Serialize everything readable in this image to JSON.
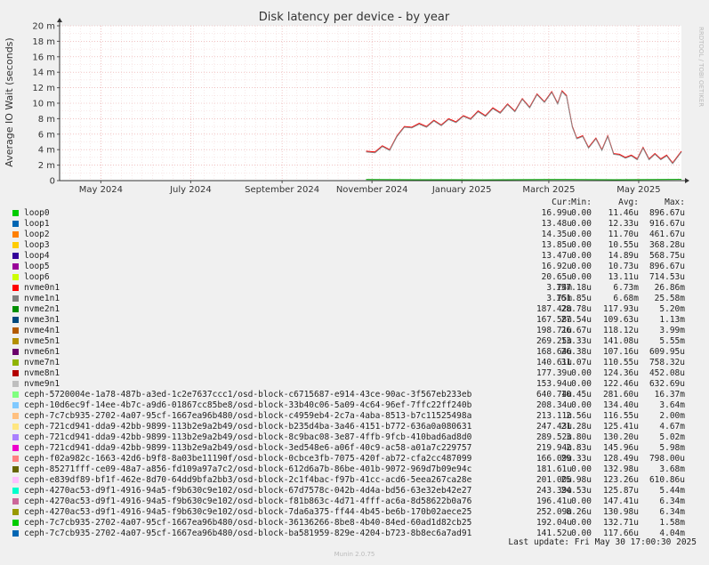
{
  "chart_data": {
    "type": "line",
    "title": "Disk latency per device - by year",
    "ylabel": "Average IO Wait (seconds)",
    "side_label": "RRDTOOL / TOBI OETIKER",
    "ylim": [
      0,
      0.02
    ],
    "y_ticks": [
      {
        "v": 0,
        "label": "0"
      },
      {
        "v": 0.002,
        "label": "2 m"
      },
      {
        "v": 0.004,
        "label": "4 m"
      },
      {
        "v": 0.006,
        "label": "6 m"
      },
      {
        "v": 0.008,
        "label": "8 m"
      },
      {
        "v": 0.01,
        "label": "10 m"
      },
      {
        "v": 0.012,
        "label": "12 m"
      },
      {
        "v": 0.014,
        "label": "14 m"
      },
      {
        "v": 0.016,
        "label": "16 m"
      },
      {
        "v": 0.018,
        "label": "18 m"
      },
      {
        "v": 0.02,
        "label": "20 m"
      }
    ],
    "x_range": [
      "2024-04-03",
      "2025-05-30"
    ],
    "x_ticks": [
      {
        "date": "2024-05-01",
        "label": "May 2024"
      },
      {
        "date": "2024-07-01",
        "label": "July 2024"
      },
      {
        "date": "2024-09-01",
        "label": "September 2024"
      },
      {
        "date": "2024-11-01",
        "label": "November 2024"
      },
      {
        "date": "2025-01-01",
        "label": "January 2025"
      },
      {
        "date": "2025-03-01",
        "label": "March 2025"
      },
      {
        "date": "2025-05-01",
        "label": "May 2025"
      }
    ],
    "grid": true,
    "series": [
      {
        "name": "nvme0n1",
        "color": "#ff0000",
        "points": [
          [
            "2024-10-28",
            0.0038
          ],
          [
            "2024-11-03",
            0.0037
          ],
          [
            "2024-11-08",
            0.0045
          ],
          [
            "2024-11-13",
            0.004
          ],
          [
            "2024-11-18",
            0.0058
          ],
          [
            "2024-11-23",
            0.007
          ],
          [
            "2024-11-28",
            0.0069
          ],
          [
            "2024-12-03",
            0.0074
          ],
          [
            "2024-12-08",
            0.007
          ],
          [
            "2024-12-13",
            0.0078
          ],
          [
            "2024-12-18",
            0.0072
          ],
          [
            "2024-12-23",
            0.008
          ],
          [
            "2024-12-28",
            0.0076
          ],
          [
            "2025-01-02",
            0.0084
          ],
          [
            "2025-01-07",
            0.008
          ],
          [
            "2025-01-12",
            0.009
          ],
          [
            "2025-01-17",
            0.0084
          ],
          [
            "2025-01-22",
            0.0094
          ],
          [
            "2025-01-27",
            0.0088
          ],
          [
            "2025-02-01",
            0.0099
          ],
          [
            "2025-02-06",
            0.009
          ],
          [
            "2025-02-11",
            0.0106
          ],
          [
            "2025-02-16",
            0.0095
          ],
          [
            "2025-02-21",
            0.0112
          ],
          [
            "2025-02-26",
            0.0102
          ],
          [
            "2025-03-03",
            0.0115
          ],
          [
            "2025-03-07",
            0.01
          ],
          [
            "2025-03-10",
            0.0116
          ],
          [
            "2025-03-13",
            0.011
          ],
          [
            "2025-03-17",
            0.007
          ],
          [
            "2025-03-20",
            0.0055
          ],
          [
            "2025-03-24",
            0.0058
          ],
          [
            "2025-03-28",
            0.0043
          ],
          [
            "2025-04-02",
            0.0055
          ],
          [
            "2025-04-06",
            0.004
          ],
          [
            "2025-04-10",
            0.0058
          ],
          [
            "2025-04-14",
            0.0035
          ],
          [
            "2025-04-18",
            0.0034
          ],
          [
            "2025-04-22",
            0.003
          ],
          [
            "2025-04-26",
            0.0033
          ],
          [
            "2025-04-30",
            0.0028
          ],
          [
            "2025-05-04",
            0.0043
          ],
          [
            "2025-05-08",
            0.0028
          ],
          [
            "2025-05-12",
            0.0035
          ],
          [
            "2025-05-16",
            0.0028
          ],
          [
            "2025-05-20",
            0.0033
          ],
          [
            "2025-05-24",
            0.0023
          ],
          [
            "2025-05-30",
            0.0038
          ]
        ]
      },
      {
        "name": "nvme1n1",
        "color": "#888888",
        "points": [
          [
            "2024-10-28",
            0.0037
          ],
          [
            "2024-11-03",
            0.0036
          ],
          [
            "2024-11-08",
            0.0044
          ],
          [
            "2024-11-13",
            0.0039
          ],
          [
            "2024-11-18",
            0.0057
          ],
          [
            "2024-11-23",
            0.0069
          ],
          [
            "2024-11-28",
            0.0068
          ],
          [
            "2024-12-03",
            0.0073
          ],
          [
            "2024-12-08",
            0.0069
          ],
          [
            "2024-12-13",
            0.0077
          ],
          [
            "2024-12-18",
            0.0071
          ],
          [
            "2024-12-23",
            0.0079
          ],
          [
            "2024-12-28",
            0.0075
          ],
          [
            "2025-01-02",
            0.0083
          ],
          [
            "2025-01-07",
            0.0079
          ],
          [
            "2025-01-12",
            0.0089
          ],
          [
            "2025-01-17",
            0.0083
          ],
          [
            "2025-01-22",
            0.0093
          ],
          [
            "2025-01-27",
            0.0087
          ],
          [
            "2025-02-01",
            0.0098
          ],
          [
            "2025-02-06",
            0.0089
          ],
          [
            "2025-02-11",
            0.0105
          ],
          [
            "2025-02-16",
            0.0094
          ],
          [
            "2025-02-21",
            0.0111
          ],
          [
            "2025-02-26",
            0.0101
          ],
          [
            "2025-03-03",
            0.0114
          ],
          [
            "2025-03-07",
            0.0099
          ],
          [
            "2025-03-10",
            0.0115
          ],
          [
            "2025-03-13",
            0.0109
          ],
          [
            "2025-03-17",
            0.0069
          ],
          [
            "2025-03-20",
            0.0054
          ],
          [
            "2025-03-24",
            0.0057
          ],
          [
            "2025-03-28",
            0.0042
          ],
          [
            "2025-04-02",
            0.0054
          ],
          [
            "2025-04-06",
            0.0039
          ],
          [
            "2025-04-10",
            0.0057
          ],
          [
            "2025-04-14",
            0.0034
          ],
          [
            "2025-04-18",
            0.0033
          ],
          [
            "2025-04-22",
            0.0029
          ],
          [
            "2025-04-26",
            0.0032
          ],
          [
            "2025-04-30",
            0.0027
          ],
          [
            "2025-05-04",
            0.0042
          ],
          [
            "2025-05-08",
            0.0027
          ],
          [
            "2025-05-12",
            0.0034
          ],
          [
            "2025-05-16",
            0.0027
          ],
          [
            "2025-05-20",
            0.0032
          ],
          [
            "2025-05-24",
            0.0022
          ],
          [
            "2025-05-30",
            0.0037
          ]
        ]
      },
      {
        "name": "nvme3n1",
        "color": "#00aa00",
        "points": [
          [
            "2024-10-28",
            0.00015
          ],
          [
            "2024-12-01",
            0.00012
          ],
          [
            "2025-01-15",
            0.0001
          ],
          [
            "2025-03-01",
            0.00015
          ],
          [
            "2025-04-15",
            0.00012
          ],
          [
            "2025-05-30",
            0.00016
          ]
        ]
      }
    ],
    "legend": {
      "headers": [
        "Cur:",
        "Min:",
        "Avg:",
        "Max:"
      ],
      "rows": [
        {
          "name": "loop0",
          "color": "#00cc00",
          "cur": "16.99u",
          "min": "0.00",
          "avg": "11.46u",
          "max": "896.67u"
        },
        {
          "name": "loop1",
          "color": "#0066b3",
          "cur": "13.48u",
          "min": "0.00",
          "avg": "12.33u",
          "max": "916.67u"
        },
        {
          "name": "loop2",
          "color": "#ff8000",
          "cur": "14.35u",
          "min": "0.00",
          "avg": "11.70u",
          "max": "461.67u"
        },
        {
          "name": "loop3",
          "color": "#ffcc00",
          "cur": "13.85u",
          "min": "0.00",
          "avg": "10.55u",
          "max": "368.28u"
        },
        {
          "name": "loop4",
          "color": "#330099",
          "cur": "13.47u",
          "min": "0.00",
          "avg": "14.89u",
          "max": "568.75u"
        },
        {
          "name": "loop5",
          "color": "#990099",
          "cur": "16.92u",
          "min": "0.00",
          "avg": "10.73u",
          "max": "896.67u"
        },
        {
          "name": "loop6",
          "color": "#ccff00",
          "cur": "20.65u",
          "min": "0.00",
          "avg": "13.11u",
          "max": "714.53u"
        },
        {
          "name": "nvme0n1",
          "color": "#ff0000",
          "cur": "3.74m",
          "min": "157.18u",
          "avg": "6.73m",
          "max": "26.86m"
        },
        {
          "name": "nvme1n1",
          "color": "#808080",
          "cur": "3.75m",
          "min": "161.85u",
          "avg": "6.68m",
          "max": "25.58m"
        },
        {
          "name": "nvme2n1",
          "color": "#008f00",
          "cur": "187.42u",
          "min": "28.78u",
          "avg": "117.93u",
          "max": "5.20m"
        },
        {
          "name": "nvme3n1",
          "color": "#00487d",
          "cur": "167.58u",
          "min": "27.54u",
          "avg": "109.63u",
          "max": "1.13m"
        },
        {
          "name": "nvme4n1",
          "color": "#b35a00",
          "cur": "198.71u",
          "min": "26.67u",
          "avg": "118.12u",
          "max": "3.99m"
        },
        {
          "name": "nvme5n1",
          "color": "#b38f00",
          "cur": "269.25u",
          "min": "13.33u",
          "avg": "141.08u",
          "max": "5.55m"
        },
        {
          "name": "nvme6n1",
          "color": "#6b006b",
          "cur": "168.64u",
          "min": "26.38u",
          "avg": "107.16u",
          "max": "609.95u"
        },
        {
          "name": "nvme7n1",
          "color": "#8fb300",
          "cur": "140.61u",
          "min": "31.07u",
          "avg": "110.55u",
          "max": "758.32u"
        },
        {
          "name": "nvme8n1",
          "color": "#b30000",
          "cur": "177.39u",
          "min": "0.00",
          "avg": "124.36u",
          "max": "452.08u"
        },
        {
          "name": "nvme9n1",
          "color": "#bebebe",
          "cur": "153.94u",
          "min": "0.00",
          "avg": "122.46u",
          "max": "632.69u"
        },
        {
          "name": "ceph-5720004e-1a78-487b-a3ed-1c2e7637ccc1/osd-block-c6715687-e914-43ce-90ac-3f567eb233eb",
          "color": "#80ff80",
          "cur": "640.74u",
          "min": "10.45u",
          "avg": "281.60u",
          "max": "16.37m"
        },
        {
          "name": "ceph-10d6ec9f-14ee-4b7c-a9d6-01867cc85be8/osd-block-33b40c06-5a09-4c64-96ef-7ffc22ff240b",
          "color": "#80c9ff",
          "cur": "208.34u",
          "min": "0.00",
          "avg": "134.40u",
          "max": "3.64m"
        },
        {
          "name": "ceph-7c7cb935-2702-4a07-95cf-1667ea96b480/osd-block-c4959eb4-2c7a-4aba-8513-b7c11525498a",
          "color": "#ffc080",
          "cur": "213.11u",
          "min": "2.56u",
          "avg": "116.55u",
          "max": "2.00m"
        },
        {
          "name": "ceph-721cd941-dda9-42bb-9899-113b2e9a2b49/osd-block-b235d4ba-3a46-4151-b772-636a0a080631",
          "color": "#ffe680",
          "cur": "247.43u",
          "min": "21.28u",
          "avg": "125.41u",
          "max": "4.67m"
        },
        {
          "name": "ceph-721cd941-dda9-42bb-9899-113b2e9a2b49/osd-block-8c9bac08-3e87-4ffb-9fcb-410bad6ad8d0",
          "color": "#aa80ff",
          "cur": "289.52u",
          "min": "3.80u",
          "avg": "130.20u",
          "max": "5.02m"
        },
        {
          "name": "ceph-721cd941-dda9-42bb-9899-113b2e9a2b49/osd-block-3ed548e6-a06f-40c9-ac58-a01a7c229757",
          "color": "#ee00cc",
          "cur": "219.94u",
          "min": "2.83u",
          "avg": "145.96u",
          "max": "5.98m"
        },
        {
          "name": "ceph-f02a982c-1663-42d6-b9f8-8a03be11190f/osd-block-0cbce3fb-7075-420f-ab72-cfa2cc487099",
          "color": "#ff8080",
          "cur": "166.09u",
          "min": "29.33u",
          "avg": "128.49u",
          "max": "798.00u"
        },
        {
          "name": "ceph-85271fff-ce09-48a7-a856-fd109a97a7c2/osd-block-612d6a7b-86be-401b-9072-969d7b09e94c",
          "color": "#666600",
          "cur": "181.61u",
          "min": "0.00",
          "avg": "132.98u",
          "max": "3.68m"
        },
        {
          "name": "ceph-e839df89-bf1f-462e-8d70-64dd9bfa2bb3/osd-block-2c1f4bac-f97b-41cc-acd6-5eea267ca28e",
          "color": "#ffbfff",
          "cur": "201.00u",
          "min": "25.98u",
          "avg": "123.26u",
          "max": "610.86u"
        },
        {
          "name": "ceph-4270ac53-d9f1-4916-94a5-f9b630c9e102/osd-block-67d7578c-042b-4d4a-bd56-63e32eb42e27",
          "color": "#00ffcc",
          "cur": "243.39u",
          "min": "24.53u",
          "avg": "125.87u",
          "max": "5.44m"
        },
        {
          "name": "ceph-4270ac53-d9f1-4916-94a5-f9b630c9e102/osd-block-f81b863c-4d71-4fff-ac6a-8d58622b0a76",
          "color": "#cc6699",
          "cur": "196.41u",
          "min": "0.00",
          "avg": "147.41u",
          "max": "6.34m"
        },
        {
          "name": "ceph-4270ac53-d9f1-4916-94a5-f9b630c9e102/osd-block-7da6a375-ff44-4b45-be6b-170b02aece25",
          "color": "#999900",
          "cur": "252.09u",
          "min": "8.26u",
          "avg": "130.98u",
          "max": "6.34m"
        },
        {
          "name": "ceph-7c7cb935-2702-4a07-95cf-1667ea96b480/osd-block-36136266-8be8-4b40-84ed-60ad1d82cb25",
          "color": "#00cc00",
          "cur": "192.04u",
          "min": "0.00",
          "avg": "132.71u",
          "max": "1.58m"
        },
        {
          "name": "ceph-7c7cb935-2702-4a07-95cf-1667ea96b480/osd-block-ba581959-829e-4204-b723-8b8ec6a7ad91",
          "color": "#0066b3",
          "cur": "141.52u",
          "min": "0.00",
          "avg": "117.66u",
          "max": "4.04m"
        }
      ]
    }
  },
  "last_update": "Last update: Fri May 30 17:00:30 2025",
  "footer": "Munin 2.0.75"
}
